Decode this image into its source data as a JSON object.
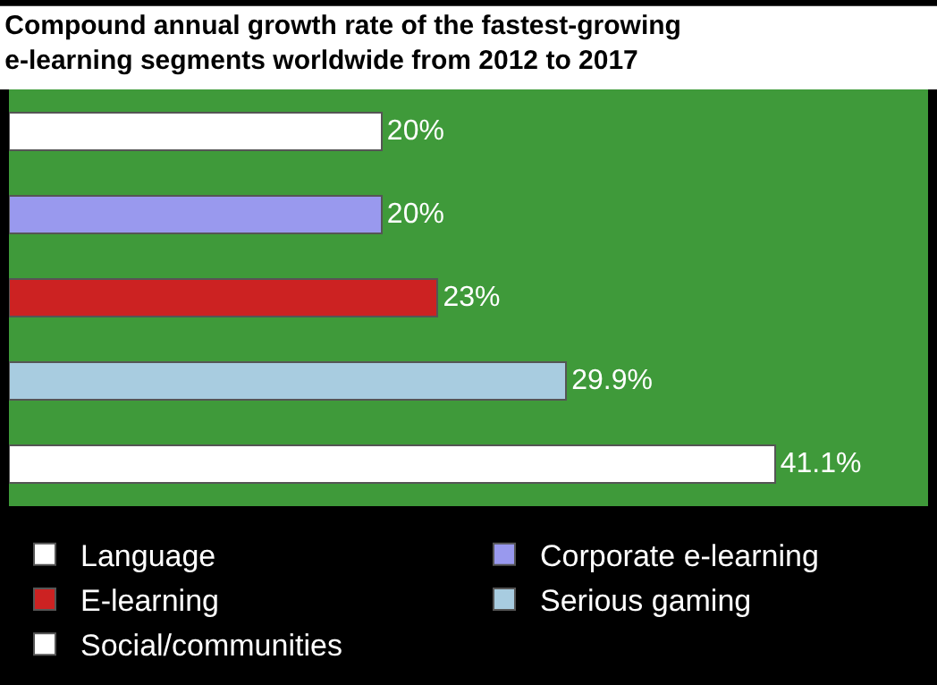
{
  "chart_data": {
    "type": "bar",
    "orientation": "horizontal",
    "stacked": true,
    "title": "Compound annual growth rate of the fastest-growing e-learning segments worldwide from 2012 to 2017",
    "categories": [
      null,
      null,
      null,
      null,
      null
    ],
    "series": [
      {
        "name": "Language",
        "color": "#ffffff",
        "values": [
          20,
          null,
          null,
          null,
          null
        ],
        "value_labels": [
          "20%",
          null,
          null,
          null,
          null
        ]
      },
      {
        "name": "Corporate e-learning",
        "color": "#9999ee",
        "values": [
          null,
          20,
          null,
          null,
          null
        ],
        "value_labels": [
          null,
          "20%",
          null,
          null,
          null
        ]
      },
      {
        "name": "E-learning",
        "color": "#cc2222",
        "values": [
          null,
          null,
          23,
          null,
          null
        ],
        "value_labels": [
          null,
          null,
          "23%",
          null,
          null
        ]
      },
      {
        "name": "Serious gaming",
        "color": "#a8cce0",
        "values": [
          null,
          null,
          null,
          29.9,
          null
        ],
        "value_labels": [
          null,
          null,
          null,
          "29.9%",
          null
        ]
      },
      {
        "name": "Social/communities",
        "color": "#ffffff",
        "values": [
          null,
          null,
          null,
          null,
          41.1
        ],
        "value_labels": [
          null,
          null,
          null,
          null,
          "41.1%"
        ]
      }
    ],
    "legend": "bottom"
  }
}
